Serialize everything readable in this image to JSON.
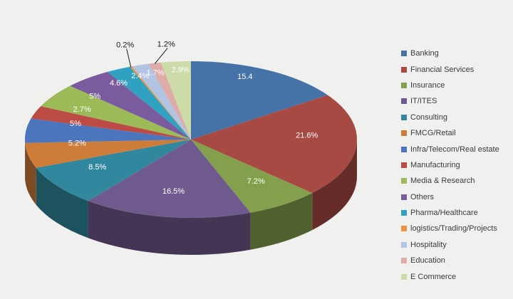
{
  "background_color": "#F0F0EE",
  "chart_data": {
    "type": "pie",
    "style": "3d",
    "title": "",
    "legend_position": "right",
    "total": 100.1,
    "series": [
      {
        "label": "Banking",
        "value": 15.4,
        "display_label": "15.4",
        "color": "#4573A7",
        "label_outside": false
      },
      {
        "label": "Financial Services",
        "value": 21.6,
        "display_label": "21.6%",
        "color": "#A84A44",
        "label_outside": false
      },
      {
        "label": "Insurance",
        "value": 7.2,
        "display_label": "7.2%",
        "color": "#85A04C",
        "label_outside": false
      },
      {
        "label": "IT/ITES",
        "value": 16.5,
        "display_label": "16.5%",
        "color": "#6F5A8E",
        "label_outside": false
      },
      {
        "label": "Consulting",
        "value": 8.5,
        "display_label": "8.5%",
        "color": "#31889E",
        "label_outside": false
      },
      {
        "label": "FMCG/Retail",
        "value": 5.2,
        "display_label": "5.2%",
        "color": "#CE7C3A",
        "label_outside": false
      },
      {
        "label": "Infra/Telecom/Real estate",
        "value": 5.0,
        "display_label": "5%",
        "color": "#4B76BD",
        "label_outside": false
      },
      {
        "label": "Manufacturing",
        "value": 2.7,
        "display_label": "2.7%",
        "color": "#BD4B45",
        "label_outside": false
      },
      {
        "label": "Media & Research",
        "value": 5.0,
        "display_label": "5%",
        "color": "#9CBB58",
        "label_outside": false
      },
      {
        "label": "Others",
        "value": 4.6,
        "display_label": "4.6%",
        "color": "#7A5C9E",
        "label_outside": false
      },
      {
        "label": "Pharma/Healthcare",
        "value": 2.4,
        "display_label": "2.4%",
        "color": "#31A1C1",
        "label_outside": false
      },
      {
        "label": "logistics/Trading/Projects",
        "value": 0.2,
        "display_label": "0.2%",
        "color": "#F0913E",
        "label_outside": true,
        "label_offset": [
          -8,
          -30
        ]
      },
      {
        "label": "Hospitality",
        "value": 1.7,
        "display_label": "1.7%",
        "color": "#B1C4E2",
        "label_outside": false
      },
      {
        "label": "Education",
        "value": 1.2,
        "display_label": "1.2%",
        "color": "#DDABA8",
        "label_outside": true,
        "label_offset": [
          16,
          -26
        ]
      },
      {
        "label": "E Commerce",
        "value": 2.9,
        "display_label": "2.9%",
        "color": "#CCDBA7",
        "label_outside": false
      }
    ],
    "inside_label_color": "#FFFFFF",
    "outside_label_color": "#1A1A1A"
  }
}
